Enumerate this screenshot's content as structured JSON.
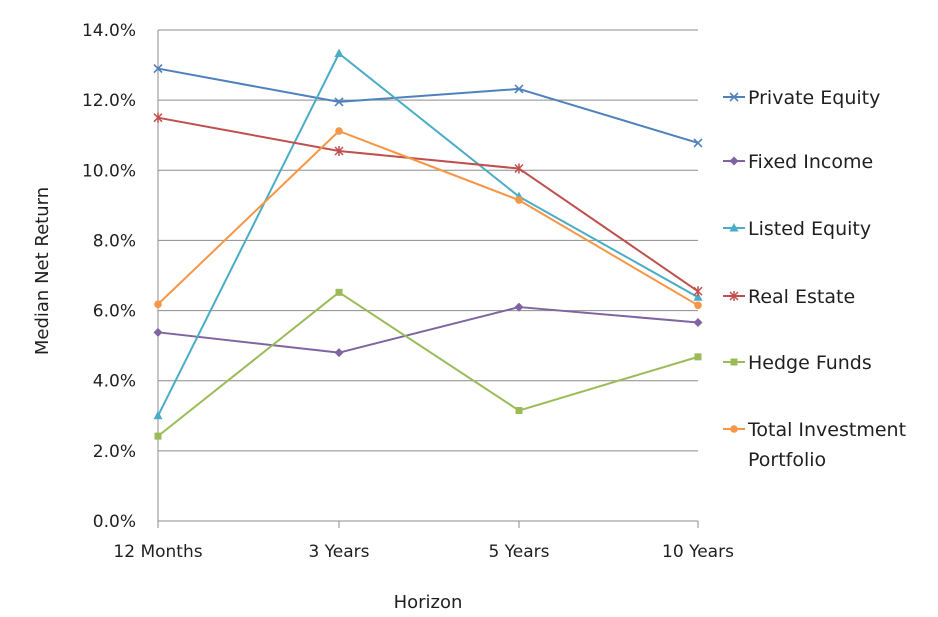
{
  "chart_data": {
    "type": "line",
    "title": "",
    "xlabel": "Horizon",
    "ylabel": "Median Net Return",
    "categories": [
      "12 Months",
      "3 Years",
      "5 Years",
      "10 Years"
    ],
    "ylim": [
      0,
      14
    ],
    "yticks": [
      "0.0%",
      "2.0%",
      "4.0%",
      "6.0%",
      "8.0%",
      "10.0%",
      "12.0%",
      "14.0%"
    ],
    "grid": true,
    "legend_position": "right",
    "series": [
      {
        "name": "Private Equity",
        "values": [
          12.9,
          11.95,
          12.32,
          10.78
        ],
        "color": "#4f81bd",
        "marker": "x"
      },
      {
        "name": "Fixed Income",
        "values": [
          5.38,
          4.8,
          6.1,
          5.66
        ],
        "color": "#8064a2",
        "marker": "diamond"
      },
      {
        "name": "Listed Equity",
        "values": [
          3.0,
          13.33,
          9.25,
          6.38
        ],
        "color": "#4bacc6",
        "marker": "triangle"
      },
      {
        "name": "Real Estate",
        "values": [
          11.5,
          10.55,
          10.05,
          6.55
        ],
        "color": "#c0504d",
        "marker": "star"
      },
      {
        "name": "Hedge Funds",
        "values": [
          2.42,
          6.52,
          3.15,
          4.68
        ],
        "color": "#9bbb59",
        "marker": "square"
      },
      {
        "name": "Total Investment Portfolio",
        "name_lines": [
          "Total Investment",
          "Portfolio"
        ],
        "values": [
          6.18,
          11.12,
          9.15,
          6.15
        ],
        "color": "#f79646",
        "marker": "circle"
      }
    ]
  }
}
